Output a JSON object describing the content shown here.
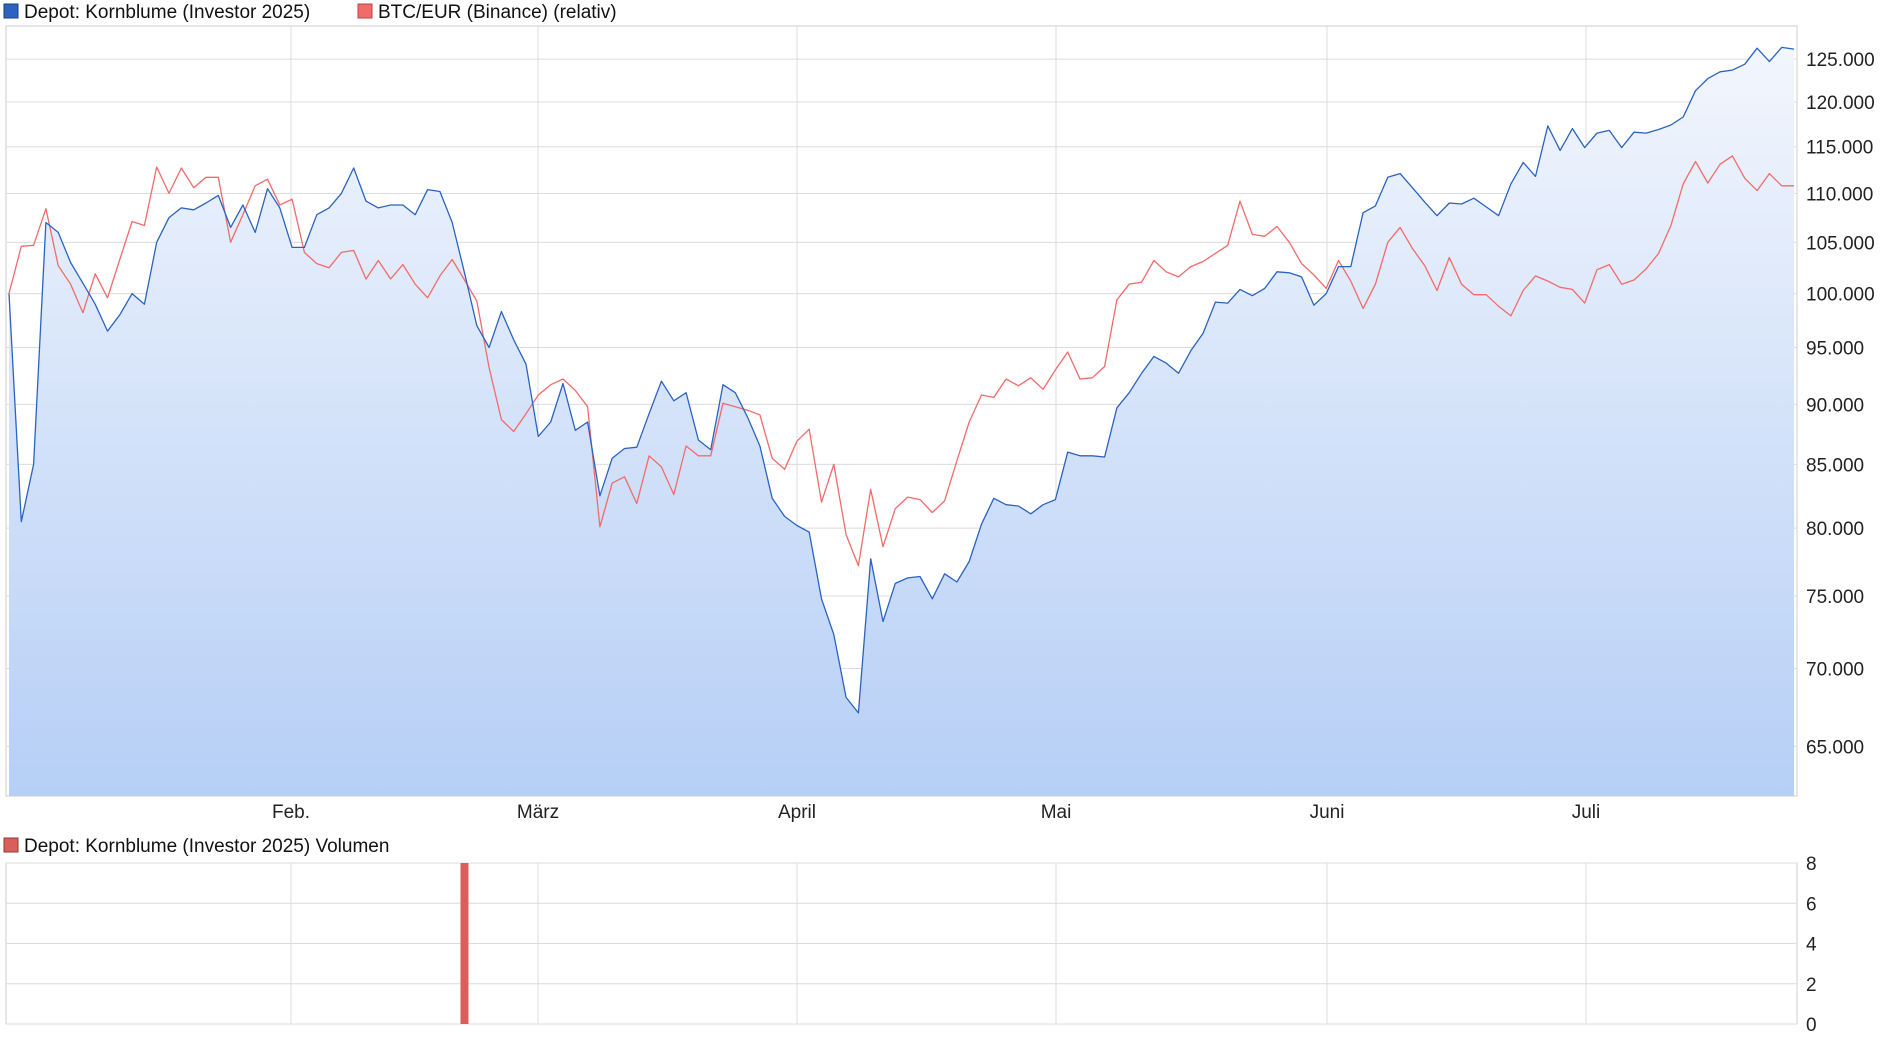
{
  "colors": {
    "depot": "#2b63bf",
    "btc": "#f26b6b",
    "volume": "#d9605a",
    "grid": "#dcdcdc",
    "area_top": "#f2f6fd",
    "area_bottom": "#b6cff6"
  },
  "legend": {
    "depot": "Depot: Kornblume (Investor 2025)",
    "btc": "BTC/EUR (Binance) (relativ)",
    "volume": "Depot: Kornblume (Investor 2025) Volumen"
  },
  "chart_data": [
    {
      "type": "line",
      "title": "",
      "xlabel": "",
      "ylabel": "",
      "y_scale": "log",
      "ylim": [
        62000,
        129000
      ],
      "grid": true,
      "legend_position": "top-left",
      "x_ticks": [
        "Feb.",
        "März",
        "April",
        "Mai",
        "Juni",
        "Juli"
      ],
      "y_ticks": [
        "125.000",
        "120.000",
        "115.000",
        "110.000",
        "105.000",
        "100.000",
        "95.000",
        "90.000",
        "85.000",
        "80.000",
        "75.000",
        "70.000",
        "65.000"
      ],
      "series": [
        {
          "name": "Depot: Kornblume (Investor 2025)",
          "area_fill": true,
          "values": [
            100000,
            80500,
            85000,
            107000,
            106000,
            103000,
            101000,
            99000,
            96500,
            98000,
            100000,
            99000,
            105000,
            107500,
            108500,
            108300,
            109000,
            109800,
            106500,
            108800,
            106000,
            110500,
            108500,
            104500,
            104500,
            107800,
            108500,
            110000,
            112700,
            109200,
            108500,
            108800,
            108800,
            107800,
            110400,
            110200,
            107000,
            102000,
            97000,
            95000,
            98300,
            95700,
            93500,
            87300,
            88500,
            91800,
            87800,
            88500,
            82500,
            85500,
            86300,
            86400,
            89200,
            92000,
            90300,
            91000,
            87000,
            86200,
            91700,
            91000,
            88900,
            86500,
            82300,
            80900,
            80200,
            79700,
            74800,
            72300,
            68100,
            67100,
            77700,
            73200,
            75900,
            76300,
            76400,
            74800,
            76600,
            76000,
            77500,
            80300,
            82300,
            81800,
            81700,
            81100,
            81800,
            82200,
            86000,
            85700,
            85700,
            85600,
            89700,
            91000,
            92700,
            94200,
            93600,
            92700,
            94700,
            96300,
            99200,
            99100,
            100400,
            99800,
            100500,
            102100,
            102000,
            101600,
            98900,
            100000,
            102600,
            102600,
            108000,
            108700,
            111700,
            112100,
            110600,
            109100,
            107700,
            109000,
            108900,
            109500,
            108600,
            107700,
            111000,
            113300,
            111800,
            117300,
            114600,
            117000,
            114900,
            116500,
            116800,
            114900,
            116600,
            116500,
            116900,
            117400,
            118300,
            121300,
            122700,
            123500,
            123700,
            124400,
            126300,
            124700,
            126400,
            126200
          ]
        },
        {
          "name": "BTC/EUR (Binance) (relativ)",
          "area_fill": false,
          "values": [
            100000,
            104600,
            104700,
            108400,
            102700,
            100900,
            98200,
            101900,
            99600,
            103300,
            107100,
            106700,
            112800,
            110000,
            112700,
            110600,
            111700,
            111700,
            105000,
            107800,
            110800,
            111500,
            108800,
            109400,
            104000,
            102900,
            102500,
            104000,
            104200,
            101400,
            103200,
            101400,
            102800,
            100900,
            99600,
            101700,
            103300,
            101300,
            99300,
            93200,
            88700,
            87700,
            89200,
            90800,
            91700,
            92200,
            91200,
            89800,
            80100,
            83500,
            84000,
            81900,
            85700,
            84800,
            82600,
            86500,
            85700,
            85700,
            90100,
            89800,
            89500,
            89100,
            85500,
            84600,
            86900,
            87900,
            82000,
            85000,
            79500,
            77200,
            83000,
            78600,
            81500,
            82400,
            82200,
            81200,
            82100,
            85300,
            88500,
            90800,
            90600,
            92200,
            91600,
            92300,
            91300,
            93000,
            94600,
            92200,
            92300,
            93300,
            99400,
            100900,
            101100,
            103200,
            102100,
            101600,
            102600,
            103100,
            103900,
            104700,
            109200,
            105800,
            105600,
            106600,
            105000,
            102900,
            101800,
            100500,
            103200,
            101200,
            98600,
            100900,
            105000,
            106500,
            104400,
            102700,
            100300,
            103500,
            100900,
            99900,
            99900,
            98800,
            97900,
            100300,
            101700,
            101200,
            100600,
            100400,
            99100,
            102300,
            102800,
            100900,
            101300,
            102400,
            103900,
            106700,
            111000,
            113400,
            111100,
            113100,
            114000,
            111600,
            110300,
            112100,
            110800,
            110800
          ]
        }
      ]
    },
    {
      "type": "bar",
      "title": "",
      "xlabel": "",
      "ylabel": "",
      "ylim": [
        0,
        8
      ],
      "grid": true,
      "legend_position": "top-left",
      "y_ticks": [
        "8",
        "6",
        "4",
        "2",
        "0"
      ],
      "series": [
        {
          "name": "Depot: Kornblume (Investor 2025) Volumen",
          "bars": [
            {
              "index": 37,
              "value": 8
            }
          ]
        }
      ]
    }
  ]
}
